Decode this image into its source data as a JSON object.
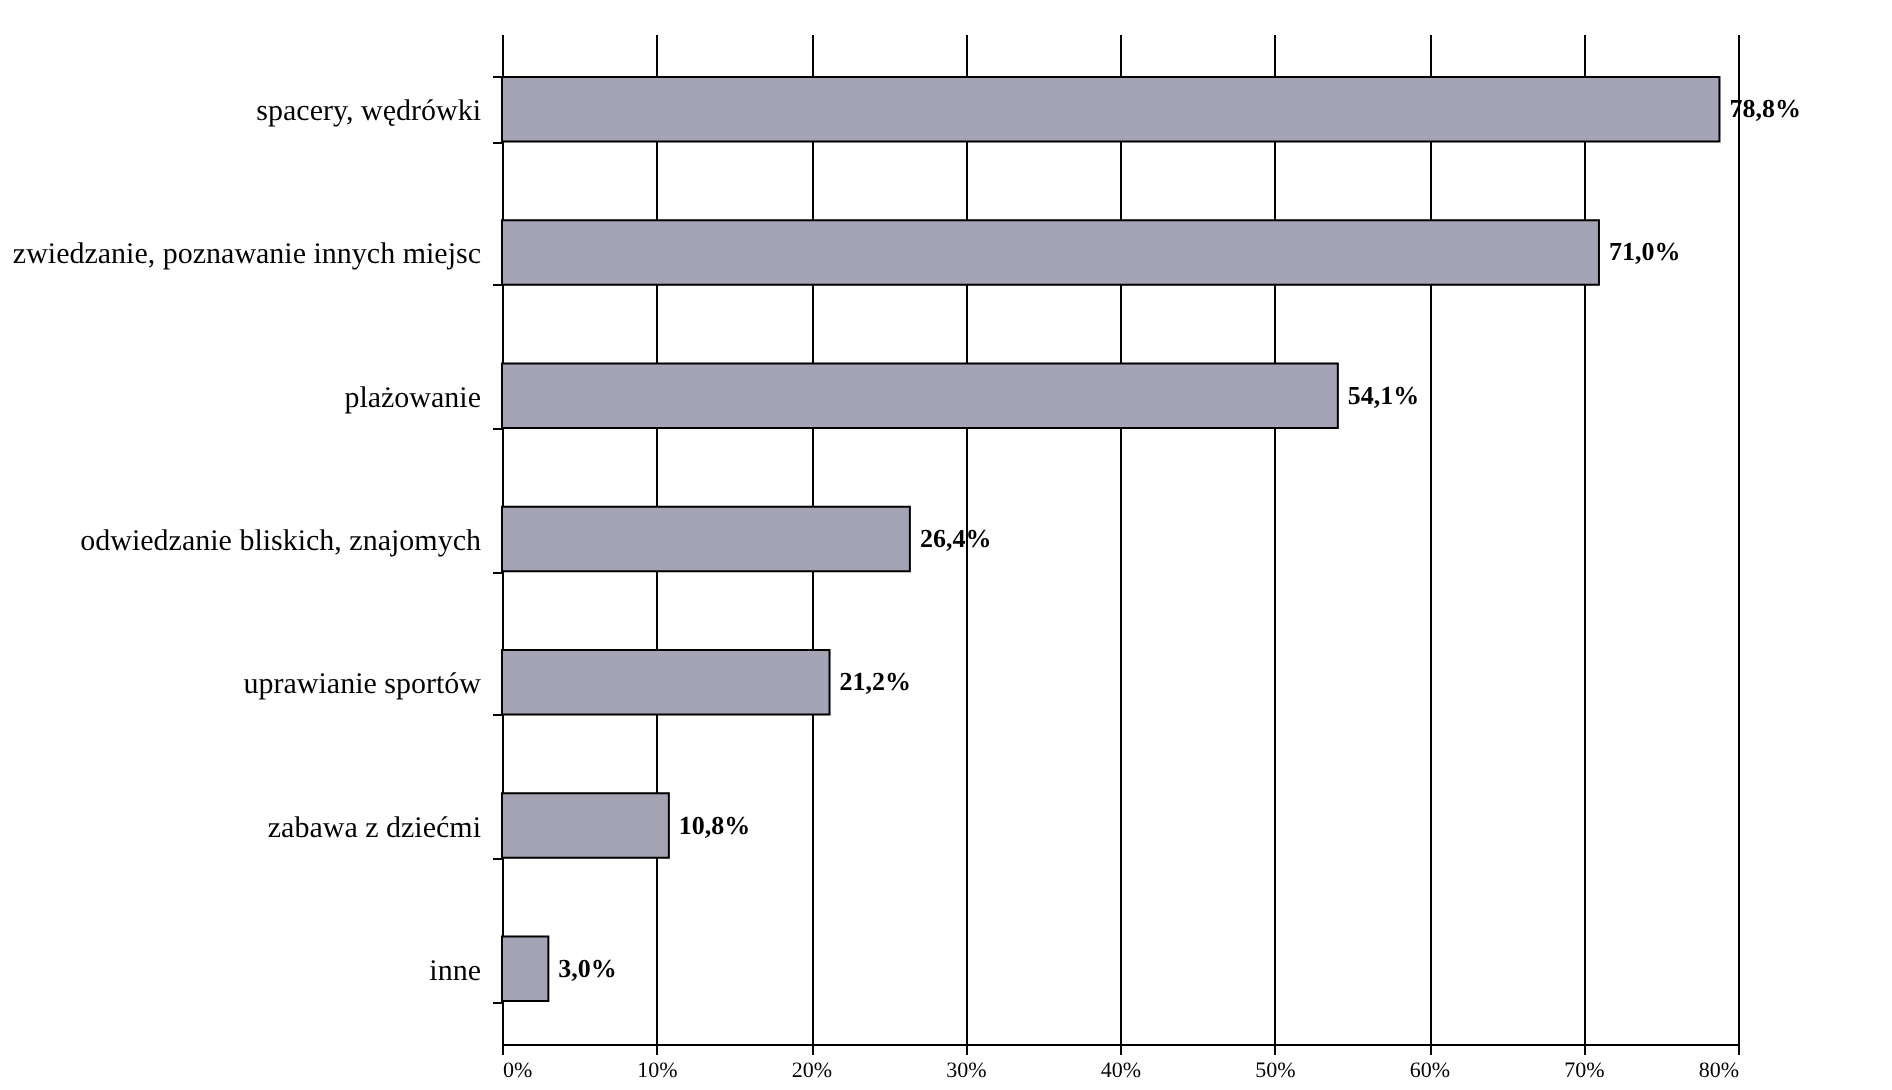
{
  "chart_data": {
    "type": "bar",
    "orientation": "horizontal",
    "categories": [
      "spacery, wędrówki",
      "zwiedzanie, poznawanie innych miejsc",
      "plażowanie",
      "odwiedzanie bliskich, znajomych",
      "uprawianie sportów",
      "zabawa z dziećmi",
      "inne"
    ],
    "values": [
      78.8,
      71.0,
      54.1,
      26.4,
      21.2,
      10.8,
      3.0
    ],
    "value_labels": [
      "78,8%",
      "71,0%",
      "54,1%",
      "26,4%",
      "21,2%",
      "10,8%",
      "3,0%"
    ],
    "color": "#a4a4b4",
    "xlim": [
      0,
      80
    ],
    "xticks": [
      {
        "value": 0,
        "label": "0%"
      },
      {
        "value": 10,
        "label": "10%"
      },
      {
        "value": 20,
        "label": "20%"
      },
      {
        "value": 30,
        "label": "30%"
      },
      {
        "value": 40,
        "label": "40%"
      },
      {
        "value": 50,
        "label": "50%"
      },
      {
        "value": 60,
        "label": "60%"
      },
      {
        "value": 70,
        "label": "70%"
      },
      {
        "value": 80,
        "label": "80%"
      }
    ],
    "grid": "x"
  }
}
